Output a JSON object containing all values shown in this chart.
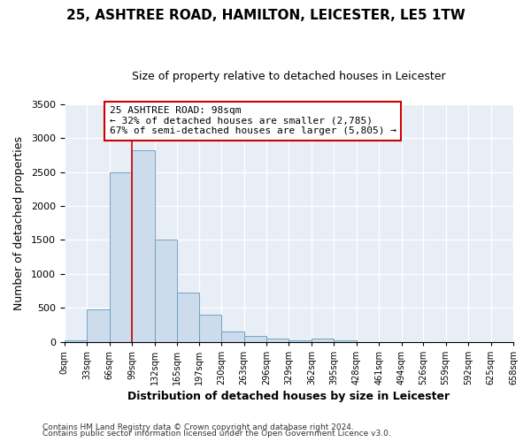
{
  "title": "25, ASHTREE ROAD, HAMILTON, LEICESTER, LE5 1TW",
  "subtitle": "Size of property relative to detached houses in Leicester",
  "xlabel": "Distribution of detached houses by size in Leicester",
  "ylabel": "Number of detached properties",
  "bar_color": "#ccdcec",
  "bar_edge_color": "#6699bb",
  "background_color": "#e8eef5",
  "bin_edges": [
    0,
    33,
    66,
    99,
    132,
    165,
    197,
    230,
    263,
    296,
    329,
    362,
    395,
    428,
    461,
    494,
    526,
    559,
    592,
    625,
    658
  ],
  "bin_labels": [
    "0sqm",
    "33sqm",
    "66sqm",
    "99sqm",
    "132sqm",
    "165sqm",
    "197sqm",
    "230sqm",
    "263sqm",
    "296sqm",
    "329sqm",
    "362sqm",
    "395sqm",
    "428sqm",
    "461sqm",
    "494sqm",
    "526sqm",
    "559sqm",
    "592sqm",
    "625sqm",
    "658sqm"
  ],
  "bar_heights": [
    20,
    480,
    2500,
    2820,
    1510,
    720,
    400,
    155,
    85,
    45,
    25,
    45,
    20,
    0,
    0,
    0,
    0,
    0,
    0,
    0
  ],
  "ylim": [
    0,
    3500
  ],
  "yticks": [
    0,
    500,
    1000,
    1500,
    2000,
    2500,
    3000,
    3500
  ],
  "property_line_x": 99,
  "annotation_text": "25 ASHTREE ROAD: 98sqm\n← 32% of detached houses are smaller (2,785)\n67% of semi-detached houses are larger (5,805) →",
  "annotation_box_color": "#ffffff",
  "annotation_border_color": "#cc0000",
  "footer_line1": "Contains HM Land Registry data © Crown copyright and database right 2024.",
  "footer_line2": "Contains public sector information licensed under the Open Government Licence v3.0."
}
